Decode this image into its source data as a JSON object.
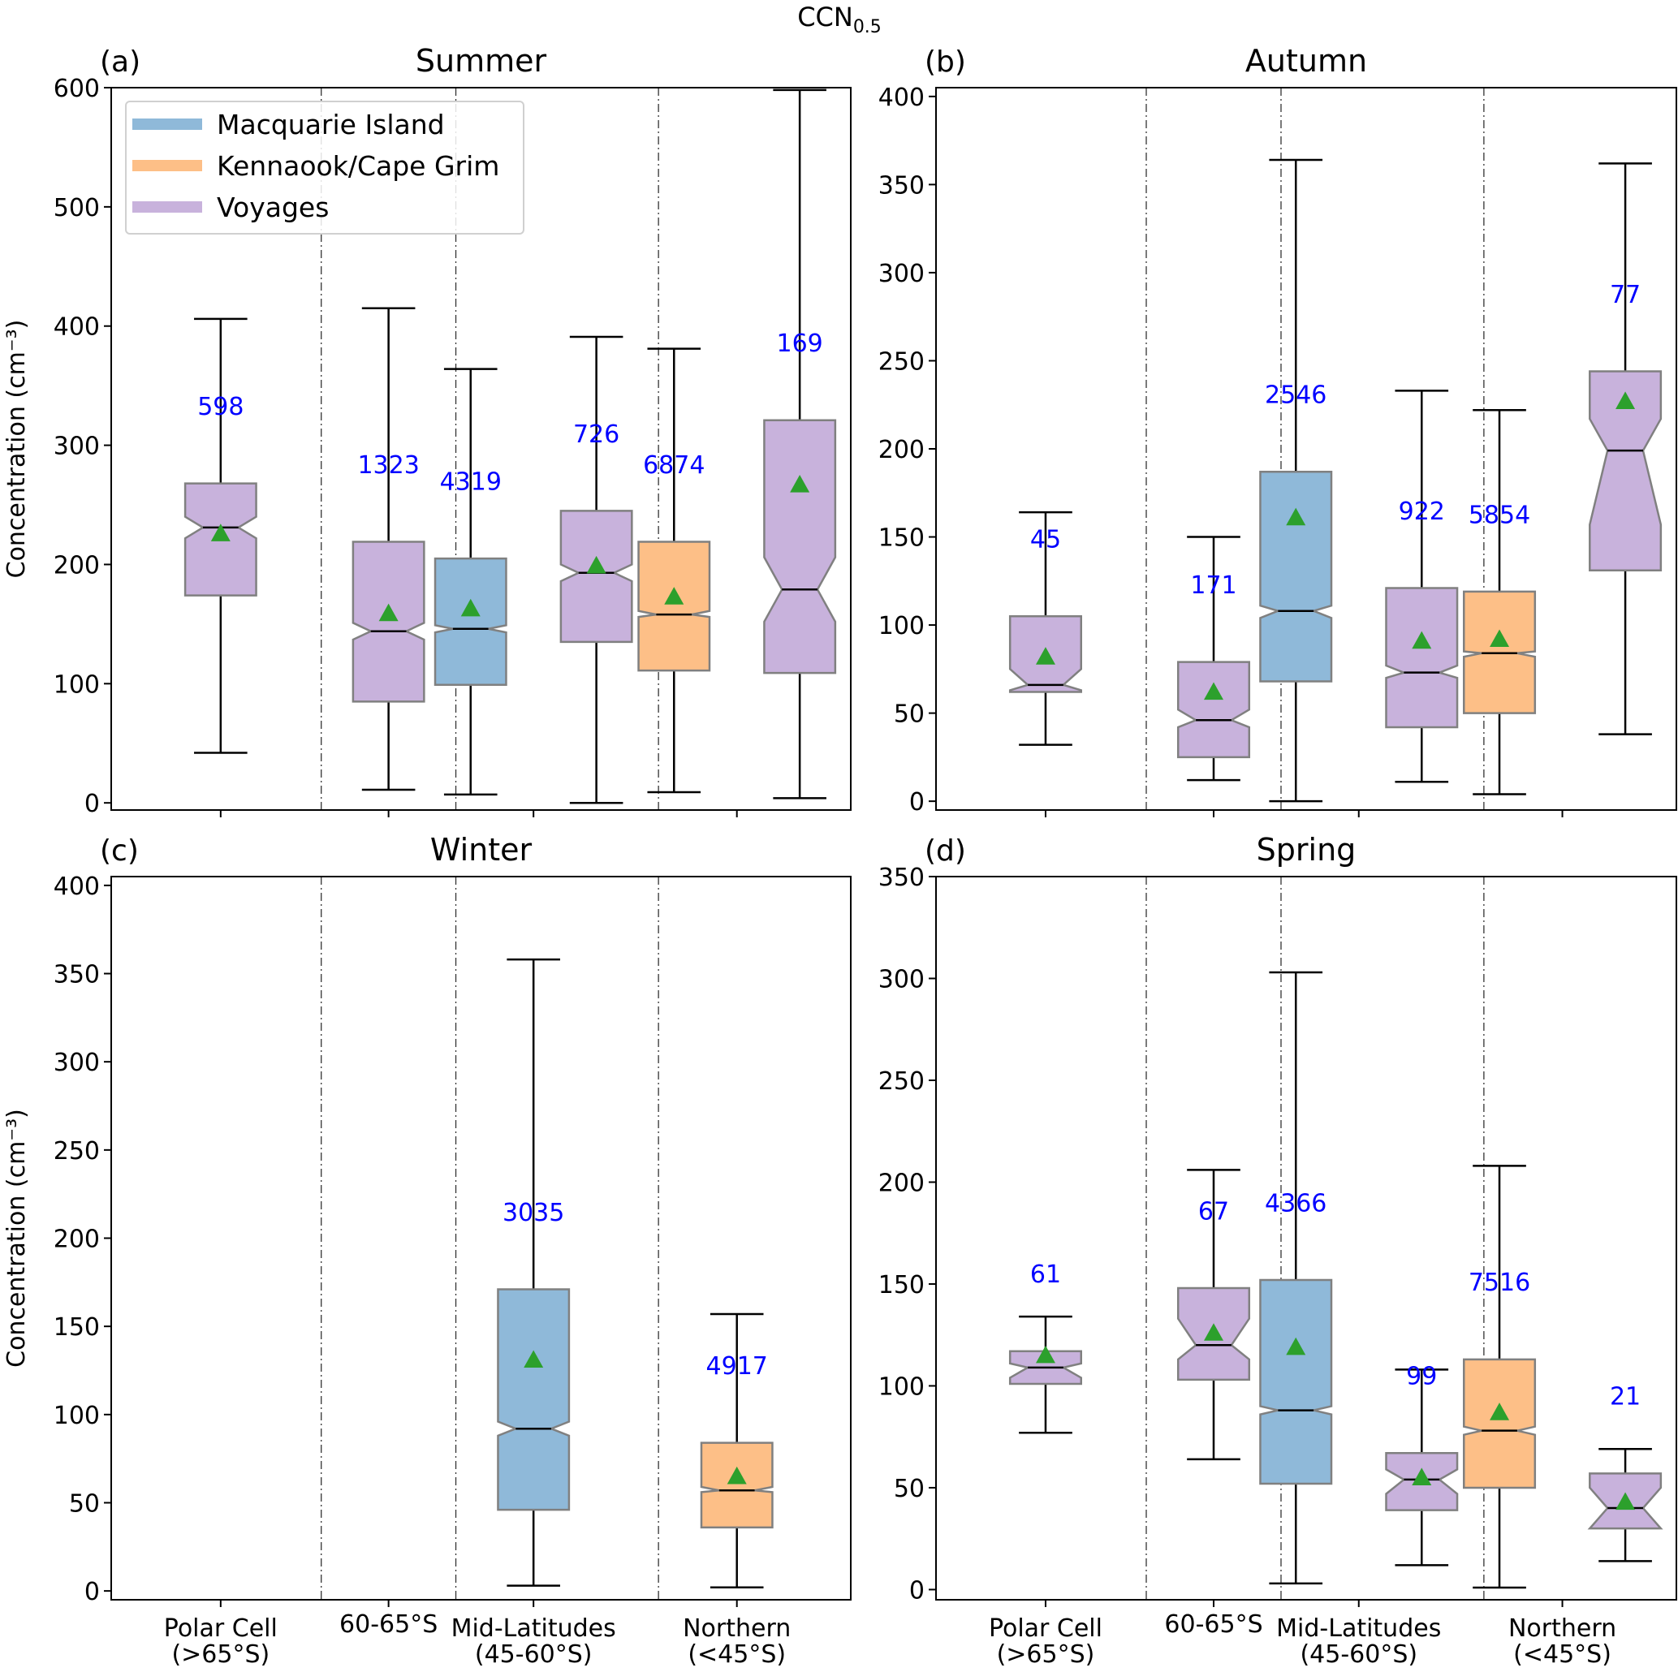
{
  "figure_title": "CCN",
  "figure_title_sub": "0.5",
  "chart_data": {
    "type": "box",
    "title": "CCN0.5",
    "ylabel": "Concentration (cm⁻³)",
    "categories": [
      "Polar Cell\n(>65°S)",
      "60-65°S",
      "Mid-Latitudes\n(45-60°S)",
      "Northern\n(<45°S)"
    ],
    "legend": {
      "placement": "upper-left (panel a)",
      "entries": [
        {
          "name": "Macquarie Island",
          "color": "#8fb9d9"
        },
        {
          "name": "Kennaook/Cape Grim",
          "color": "#fdbf87"
        },
        {
          "name": "Voyages",
          "color": "#c8b2dc"
        }
      ]
    },
    "mean_marker": {
      "shape": "triangle",
      "color": "#2ca02c"
    },
    "count_label_color": "#0000ff",
    "panels": [
      {
        "letter": "(a)",
        "season": "Summer",
        "ylim": [
          -6,
          600
        ],
        "yticks": [
          0,
          100,
          200,
          300,
          400,
          500,
          600
        ],
        "boxes": [
          {
            "category": 0,
            "source": "Voyages",
            "n": "598",
            "whislo": 42,
            "q1": 174,
            "med": 231,
            "q3": 268,
            "whishi": 406,
            "mean": 226,
            "notch": [
              222,
              240
            ]
          },
          {
            "category": 1,
            "source": "Voyages",
            "n": "1323",
            "whislo": 11,
            "q1": 85,
            "med": 144,
            "q3": 219,
            "whishi": 415,
            "mean": 159,
            "notch": [
              137,
              151
            ]
          },
          {
            "category": 2,
            "source": "Macquarie Island",
            "n": "4319",
            "whislo": 7,
            "q1": 99,
            "med": 146,
            "q3": 205,
            "whishi": 364,
            "mean": 163,
            "notch": [
              143,
              149
            ]
          },
          {
            "category": 2,
            "source": "Voyages",
            "n": "726",
            "whislo": 0,
            "q1": 135,
            "med": 193,
            "q3": 245,
            "whishi": 391,
            "mean": 199,
            "notch": [
              186,
              200
            ]
          },
          {
            "category": 3,
            "source": "Kennaook/Cape Grim",
            "n": "6874",
            "whislo": 9,
            "q1": 111,
            "med": 158,
            "q3": 219,
            "whishi": 381,
            "mean": 173,
            "notch": [
              156,
              161
            ]
          },
          {
            "category": 3,
            "source": "Voyages",
            "n": "169",
            "whislo": 4,
            "q1": 109,
            "med": 179,
            "q3": 321,
            "whishi": 598,
            "mean": 267,
            "notch": [
              152,
              206
            ]
          }
        ]
      },
      {
        "letter": "(b)",
        "season": "Autumn",
        "ylim": [
          -5,
          405
        ],
        "yticks": [
          0,
          50,
          100,
          150,
          200,
          250,
          300,
          350,
          400
        ],
        "boxes": [
          {
            "category": 0,
            "source": "Voyages",
            "n": "45",
            "whislo": 32,
            "q1": 62,
            "med": 66,
            "q3": 105,
            "whishi": 164,
            "mean": 82,
            "notch": [
              63,
              75
            ]
          },
          {
            "category": 1,
            "source": "Voyages",
            "n": "171",
            "whislo": 12,
            "q1": 25,
            "med": 46,
            "q3": 79,
            "whishi": 150,
            "mean": 62,
            "notch": [
              42,
              52
            ]
          },
          {
            "category": 2,
            "source": "Macquarie Island",
            "n": "2546",
            "whislo": 0,
            "q1": 68,
            "med": 108,
            "q3": 187,
            "whishi": 364,
            "mean": 161,
            "notch": [
              104,
              111
            ]
          },
          {
            "category": 2,
            "source": "Voyages",
            "n": "922",
            "whislo": 11,
            "q1": 42,
            "med": 73,
            "q3": 121,
            "whishi": 233,
            "mean": 91,
            "notch": [
              70,
              77
            ]
          },
          {
            "category": 3,
            "source": "Kennaook/Cape Grim",
            "n": "5854",
            "whislo": 4,
            "q1": 50,
            "med": 84,
            "q3": 119,
            "whishi": 222,
            "mean": 92,
            "notch": [
              82,
              85
            ]
          },
          {
            "category": 3,
            "source": "Voyages",
            "n": "77",
            "whislo": 38,
            "q1": 131,
            "med": 199,
            "q3": 244,
            "whishi": 362,
            "mean": 227,
            "notch": [
              157,
              217
            ]
          }
        ]
      },
      {
        "letter": "(c)",
        "season": "Winter",
        "ylim": [
          -5,
          405
        ],
        "yticks": [
          0,
          50,
          100,
          150,
          200,
          250,
          300,
          350,
          400
        ],
        "boxes": [
          {
            "category": 2,
            "source": "Macquarie Island",
            "n": "3035",
            "whislo": 3,
            "q1": 46,
            "med": 92,
            "q3": 171,
            "whishi": 358,
            "mean": 131,
            "notch": [
              88,
              96
            ]
          },
          {
            "category": 3,
            "source": "Kennaook/Cape Grim",
            "n": "4917",
            "whislo": 2,
            "q1": 36,
            "med": 57,
            "q3": 84,
            "whishi": 157,
            "mean": 65,
            "notch": [
              56,
              59
            ]
          }
        ]
      },
      {
        "letter": "(d)",
        "season": "Spring",
        "ylim": [
          -5,
          350
        ],
        "yticks": [
          0,
          50,
          100,
          150,
          200,
          250,
          300,
          350
        ],
        "boxes": [
          {
            "category": 0,
            "source": "Voyages",
            "n": "61",
            "whislo": 77,
            "q1": 101,
            "med": 109,
            "q3": 117,
            "whishi": 134,
            "mean": 115,
            "notch": [
              104,
              111
            ]
          },
          {
            "category": 1,
            "source": "Voyages",
            "n": "67",
            "whislo": 64,
            "q1": 103,
            "med": 120,
            "q3": 148,
            "whishi": 206,
            "mean": 126,
            "notch": [
              113,
              133
            ]
          },
          {
            "category": 2,
            "source": "Macquarie Island",
            "n": "4366",
            "whislo": 3,
            "q1": 52,
            "med": 88,
            "q3": 152,
            "whishi": 303,
            "mean": 119,
            "notch": [
              86,
              90
            ]
          },
          {
            "category": 2,
            "source": "Voyages",
            "n": "99",
            "whislo": 12,
            "q1": 39,
            "med": 54,
            "q3": 67,
            "whishi": 108,
            "mean": 55,
            "notch": [
              47,
              59
            ]
          },
          {
            "category": 3,
            "source": "Kennaook/Cape Grim",
            "n": "7516",
            "whislo": 1,
            "q1": 50,
            "med": 78,
            "q3": 113,
            "whishi": 208,
            "mean": 87,
            "notch": [
              76,
              80
            ]
          },
          {
            "category": 3,
            "source": "Voyages",
            "n": "21",
            "whislo": 14,
            "q1": 30,
            "med": 40,
            "q3": 57,
            "whishi": 69,
            "mean": 43,
            "notch": [
              30,
              50
            ]
          }
        ]
      }
    ]
  }
}
